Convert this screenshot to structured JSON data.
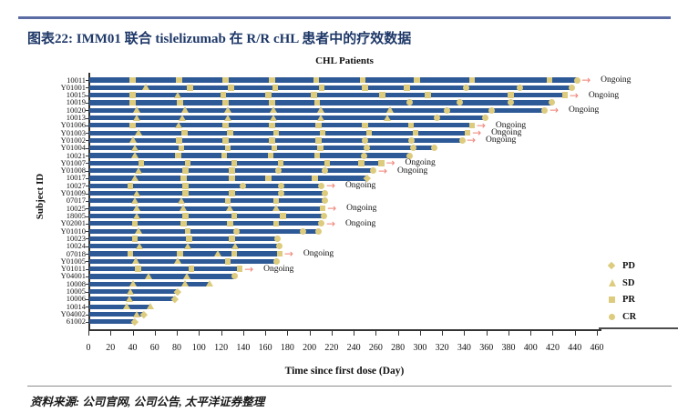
{
  "header": {
    "title": "图表22: IMM01 联合 tislelizumab 在 R/R cHL 患者中的疗效数据"
  },
  "footer": {
    "source": "资料来源: 公司官网, 公司公告, 太平洋证券整理"
  },
  "chart_data": {
    "type": "bar",
    "subtype": "swimmer-plot",
    "title": "CHL Patients",
    "xlabel": "Time since first dose (Day)",
    "ylabel": "Subject ID",
    "xlim": [
      0,
      460
    ],
    "xtick_step": 20,
    "grid": false,
    "legend_position": "right",
    "ongoing_label": "Ongoing",
    "colors": {
      "bar": "#2d5996",
      "marker": "#ddcb7e",
      "arrow": "#ef8478",
      "header_rule": "#5b6ba4",
      "header_text": "#1e3868"
    },
    "legend": [
      {
        "label": "PD",
        "shape": "diamond"
      },
      {
        "label": "SD",
        "shape": "triangle"
      },
      {
        "label": "PR",
        "shape": "square"
      },
      {
        "label": "CR",
        "shape": "circle"
      }
    ],
    "subjects": [
      {
        "id": "10011",
        "end": 442,
        "ongoing": true,
        "markers": [
          [
            40,
            "PR"
          ],
          [
            82,
            "PR"
          ],
          [
            124,
            "PR"
          ],
          [
            166,
            "PR"
          ],
          [
            206,
            "PR"
          ],
          [
            248,
            "PR"
          ],
          [
            297,
            "PR"
          ],
          [
            347,
            "PR"
          ],
          [
            417,
            "PR"
          ],
          [
            442,
            "CR"
          ]
        ]
      },
      {
        "id": "Y01001",
        "end": 437,
        "ongoing": false,
        "markers": [
          [
            52,
            "SD"
          ],
          [
            92,
            "PR"
          ],
          [
            129,
            "PR"
          ],
          [
            169,
            "PR"
          ],
          [
            211,
            "PR"
          ],
          [
            250,
            "PR"
          ],
          [
            288,
            "PR"
          ],
          [
            342,
            "CR"
          ],
          [
            390,
            "CR"
          ],
          [
            437,
            "CR"
          ]
        ]
      },
      {
        "id": "10015",
        "end": 431,
        "ongoing": true,
        "markers": [
          [
            40,
            "PR"
          ],
          [
            81,
            "SD"
          ],
          [
            122,
            "PR"
          ],
          [
            163,
            "PR"
          ],
          [
            204,
            "PR"
          ],
          [
            266,
            "PR"
          ],
          [
            307,
            "PR"
          ],
          [
            382,
            "PR"
          ],
          [
            431,
            "PR"
          ]
        ]
      },
      {
        "id": "10019",
        "end": 419,
        "ongoing": false,
        "markers": [
          [
            40,
            "PR"
          ],
          [
            83,
            "PR"
          ],
          [
            124,
            "PR"
          ],
          [
            166,
            "PR"
          ],
          [
            207,
            "PR"
          ],
          [
            291,
            "CR"
          ],
          [
            336,
            "CR"
          ],
          [
            382,
            "CR"
          ],
          [
            419,
            "CR"
          ]
        ]
      },
      {
        "id": "10020",
        "end": 413,
        "ongoing": true,
        "markers": [
          [
            44,
            "SD"
          ],
          [
            87,
            "SD"
          ],
          [
            126,
            "SD"
          ],
          [
            167,
            "SD"
          ],
          [
            210,
            "SD"
          ],
          [
            273,
            "SD"
          ],
          [
            324,
            "CR"
          ],
          [
            365,
            "CR"
          ],
          [
            413,
            "CR"
          ]
        ]
      },
      {
        "id": "10013",
        "end": 359,
        "ongoing": false,
        "markers": [
          [
            44,
            "SD"
          ],
          [
            85,
            "SD"
          ],
          [
            126,
            "SD"
          ],
          [
            167,
            "SD"
          ],
          [
            210,
            "SD"
          ],
          [
            270,
            "SD"
          ],
          [
            315,
            "CR"
          ],
          [
            359,
            "CR"
          ]
        ]
      },
      {
        "id": "Y01006",
        "end": 347,
        "ongoing": true,
        "markers": [
          [
            40,
            "PR"
          ],
          [
            82,
            "SD"
          ],
          [
            124,
            "PR"
          ],
          [
            166,
            "PR"
          ],
          [
            208,
            "PR"
          ],
          [
            250,
            "PR"
          ],
          [
            292,
            "PR"
          ],
          [
            347,
            "PR"
          ]
        ]
      },
      {
        "id": "Y01003",
        "end": 343,
        "ongoing": true,
        "markers": [
          [
            45,
            "SD"
          ],
          [
            87,
            "PR"
          ],
          [
            128,
            "PR"
          ],
          [
            170,
            "PR"
          ],
          [
            212,
            "PR"
          ],
          [
            254,
            "PR"
          ],
          [
            296,
            "PR"
          ],
          [
            343,
            "PR"
          ]
        ]
      },
      {
        "id": "Y01002",
        "end": 338,
        "ongoing": true,
        "markers": [
          [
            40,
            "SD"
          ],
          [
            82,
            "PR"
          ],
          [
            124,
            "PR"
          ],
          [
            166,
            "PR"
          ],
          [
            208,
            "PR"
          ],
          [
            250,
            "CR"
          ],
          [
            292,
            "CR"
          ],
          [
            338,
            "CR"
          ]
        ]
      },
      {
        "id": "Y01004",
        "end": 313,
        "ongoing": false,
        "markers": [
          [
            42,
            "SD"
          ],
          [
            84,
            "PR"
          ],
          [
            126,
            "PR"
          ],
          [
            168,
            "PR"
          ],
          [
            210,
            "PR"
          ],
          [
            252,
            "CR"
          ],
          [
            294,
            "CR"
          ],
          [
            313,
            "CR"
          ]
        ]
      },
      {
        "id": "10021",
        "end": 291,
        "ongoing": false,
        "markers": [
          [
            42,
            "SD"
          ],
          [
            81,
            "PR"
          ],
          [
            123,
            "PR"
          ],
          [
            165,
            "PR"
          ],
          [
            207,
            "PR"
          ],
          [
            249,
            "CR"
          ],
          [
            291,
            "CR"
          ]
        ]
      },
      {
        "id": "Y01007",
        "end": 265,
        "ongoing": true,
        "markers": [
          [
            48,
            "PR"
          ],
          [
            90,
            "PR"
          ],
          [
            132,
            "PR"
          ],
          [
            174,
            "PR"
          ],
          [
            216,
            "PR"
          ],
          [
            247,
            "PR"
          ],
          [
            265,
            "PR"
          ]
        ]
      },
      {
        "id": "Y01008",
        "end": 258,
        "ongoing": true,
        "markers": [
          [
            45,
            "SD"
          ],
          [
            88,
            "PR"
          ],
          [
            130,
            "PR"
          ],
          [
            172,
            "CR"
          ],
          [
            214,
            "CR"
          ],
          [
            258,
            "CR"
          ]
        ]
      },
      {
        "id": "10017",
        "end": 252,
        "ongoing": false,
        "markers": [
          [
            42,
            "SD"
          ],
          [
            86,
            "PR"
          ],
          [
            130,
            "PR"
          ],
          [
            163,
            "PR"
          ],
          [
            205,
            "PR"
          ],
          [
            252,
            "PD"
          ]
        ]
      },
      {
        "id": "10027",
        "end": 211,
        "ongoing": true,
        "markers": [
          [
            38,
            "PR"
          ],
          [
            88,
            "PR"
          ],
          [
            140,
            "CR"
          ],
          [
            174,
            "CR"
          ],
          [
            211,
            "CR"
          ]
        ]
      },
      {
        "id": "Y01009",
        "end": 214,
        "ongoing": false,
        "markers": [
          [
            44,
            "SD"
          ],
          [
            88,
            "PR"
          ],
          [
            130,
            "PR"
          ],
          [
            174,
            "CR"
          ],
          [
            214,
            "CR"
          ]
        ]
      },
      {
        "id": "07017",
        "end": 214,
        "ongoing": false,
        "markers": [
          [
            42,
            "SD"
          ],
          [
            84,
            "SD"
          ],
          [
            126,
            "PR"
          ],
          [
            170,
            "PR"
          ],
          [
            214,
            "CR"
          ]
        ]
      },
      {
        "id": "10025",
        "end": 212,
        "ongoing": true,
        "markers": [
          [
            44,
            "SD"
          ],
          [
            86,
            "SD"
          ],
          [
            128,
            "SD"
          ],
          [
            170,
            "SD"
          ],
          [
            212,
            "PR"
          ]
        ]
      },
      {
        "id": "18005",
        "end": 213,
        "ongoing": false,
        "markers": [
          [
            44,
            "SD"
          ],
          [
            88,
            "PR"
          ],
          [
            132,
            "PR"
          ],
          [
            176,
            "PR"
          ],
          [
            213,
            "CR"
          ]
        ]
      },
      {
        "id": "Y02001",
        "end": 211,
        "ongoing": true,
        "markers": [
          [
            42,
            "PR"
          ],
          [
            86,
            "PR"
          ],
          [
            128,
            "PR"
          ],
          [
            170,
            "PR"
          ],
          [
            211,
            "CR"
          ]
        ]
      },
      {
        "id": "Y01010",
        "end": 208,
        "ongoing": false,
        "markers": [
          [
            45,
            "SD"
          ],
          [
            90,
            "PR"
          ],
          [
            134,
            "CR"
          ],
          [
            194,
            "CR"
          ],
          [
            208,
            "CR"
          ]
        ]
      },
      {
        "id": "10023",
        "end": 171,
        "ongoing": false,
        "markers": [
          [
            42,
            "PR"
          ],
          [
            91,
            "PR"
          ],
          [
            130,
            "PR"
          ],
          [
            171,
            "CR"
          ]
        ]
      },
      {
        "id": "10024",
        "end": 173,
        "ongoing": false,
        "markers": [
          [
            46,
            "SD"
          ],
          [
            90,
            "SD"
          ],
          [
            133,
            "SD"
          ],
          [
            173,
            "CR"
          ]
        ]
      },
      {
        "id": "07018",
        "end": 173,
        "ongoing": true,
        "markers": [
          [
            38,
            "PR"
          ],
          [
            83,
            "PR"
          ],
          [
            117,
            "SD"
          ],
          [
            132,
            "PR"
          ],
          [
            173,
            "PR"
          ]
        ]
      },
      {
        "id": "Y01005",
        "end": 170,
        "ongoing": false,
        "markers": [
          [
            43,
            "SD"
          ],
          [
            81,
            "SD"
          ],
          [
            126,
            "PR"
          ],
          [
            170,
            "CR"
          ]
        ]
      },
      {
        "id": "Y01011",
        "end": 137,
        "ongoing": true,
        "markers": [
          [
            45,
            "PR"
          ],
          [
            93,
            "PR"
          ],
          [
            137,
            "PR"
          ]
        ]
      },
      {
        "id": "Y04001",
        "end": 132,
        "ongoing": false,
        "markers": [
          [
            54,
            "SD"
          ],
          [
            89,
            "SD"
          ],
          [
            132,
            "CR"
          ]
        ]
      },
      {
        "id": "10008",
        "end": 110,
        "ongoing": false,
        "markers": [
          [
            40,
            "SD"
          ],
          [
            87,
            "SD"
          ],
          [
            110,
            "SD"
          ]
        ]
      },
      {
        "id": "10005",
        "end": 81,
        "ongoing": false,
        "markers": [
          [
            38,
            "SD"
          ],
          [
            81,
            "PD"
          ]
        ]
      },
      {
        "id": "10006",
        "end": 78,
        "ongoing": false,
        "markers": [
          [
            37,
            "SD"
          ],
          [
            78,
            "PD"
          ]
        ]
      },
      {
        "id": "10014",
        "end": 56,
        "ongoing": false,
        "markers": [
          [
            35,
            "SD"
          ],
          [
            56,
            "SD"
          ]
        ]
      },
      {
        "id": "Y04002",
        "end": 50,
        "ongoing": false,
        "markers": [
          [
            44,
            "SD"
          ],
          [
            50,
            "PD"
          ]
        ]
      },
      {
        "id": "61002",
        "end": 42,
        "ongoing": false,
        "markers": [
          [
            42,
            "PD"
          ]
        ]
      }
    ]
  }
}
